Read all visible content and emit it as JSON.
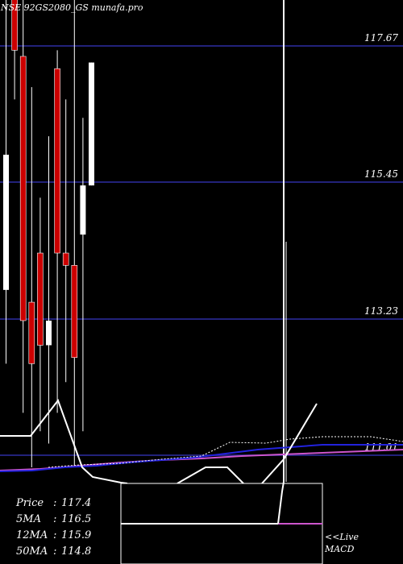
{
  "chart_data": {
    "type": "candlestick",
    "title": "NSE 92GS2080_GS munafa.pro",
    "ylim": [
      108.5,
      119.5
    ],
    "price_levels": [
      117.67,
      115.45,
      113.23,
      111.01
    ],
    "candles": [
      {
        "open": 113.7,
        "close": 115.9,
        "high": 118.6,
        "low": 112.5,
        "color": "white"
      },
      {
        "open": 119.5,
        "close": 117.6,
        "high": 119.5,
        "low": 116.8,
        "color": "red"
      },
      {
        "open": 117.5,
        "close": 113.2,
        "high": 118.9,
        "low": 111.7,
        "color": "red"
      },
      {
        "open": 113.5,
        "close": 112.5,
        "high": 117.0,
        "low": 110.6,
        "color": "red"
      },
      {
        "open": 114.3,
        "close": 112.8,
        "high": 115.2,
        "low": 111.4,
        "color": "red"
      },
      {
        "open": 113.2,
        "close": 112.8,
        "high": 116.2,
        "low": 111.2,
        "color": "white"
      },
      {
        "open": 117.3,
        "close": 114.3,
        "high": 117.6,
        "low": 111.7,
        "color": "red"
      },
      {
        "open": 114.3,
        "close": 114.1,
        "high": 116.8,
        "low": 112.2,
        "color": "red"
      },
      {
        "open": 114.1,
        "close": 112.6,
        "high": 119.5,
        "low": 109.9,
        "color": "red"
      },
      {
        "open": 114.6,
        "close": 115.4,
        "high": 116.5,
        "low": 111.4,
        "color": "white"
      },
      {
        "open": 115.4,
        "close": 117.4,
        "high": 117.4,
        "low": 115.4,
        "color": "white"
      }
    ],
    "series": [
      {
        "name": "5MA",
        "color": "#2222dd"
      },
      {
        "name": "12MA",
        "color": "#ffffff"
      },
      {
        "name": "50MA",
        "color": "#cc55cc"
      }
    ],
    "info": [
      {
        "label": "Price",
        "value": "117.4"
      },
      {
        "label": "5MA",
        "value": "116.5"
      },
      {
        "label": "12MA",
        "value": "115.9"
      },
      {
        "label": "50MA",
        "value": "114.8"
      }
    ],
    "macd_label_1": "<<Live",
    "macd_label_2": "MACD"
  }
}
